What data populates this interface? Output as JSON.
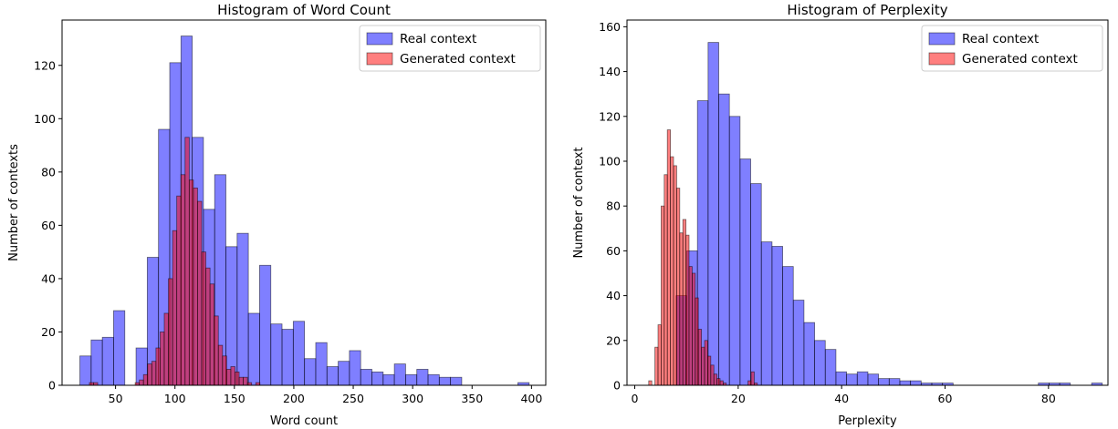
{
  "chart_data": [
    {
      "type": "bar",
      "title": "Histogram of Word Count",
      "xlabel": "Word count",
      "ylabel": "Number of contexts",
      "xlim": [
        5,
        412
      ],
      "ylim": [
        0,
        137
      ],
      "xticks": [
        50,
        100,
        150,
        200,
        250,
        300,
        350,
        400
      ],
      "yticks": [
        0,
        20,
        40,
        60,
        80,
        100,
        120
      ],
      "grid": false,
      "legend_position": "upper right",
      "series": [
        {
          "name": "Real context",
          "color": "#0000ff",
          "bin_start": 20.0,
          "bin_width": 9.45,
          "values": [
            11,
            17,
            18,
            28,
            0,
            14,
            48,
            96,
            121,
            131,
            93,
            66,
            79,
            52,
            57,
            27,
            45,
            23,
            21,
            24,
            10,
            16,
            7,
            9,
            13,
            6,
            5,
            4,
            8,
            4,
            6,
            4,
            3,
            3,
            0,
            0,
            0,
            0,
            0,
            1
          ]
        },
        {
          "name": "Generated context",
          "color": "#ff0000",
          "bin_start": 28.0,
          "bin_width": 3.5,
          "values": [
            1,
            1,
            0,
            0,
            0,
            0,
            0,
            0,
            0,
            0,
            0,
            1,
            2,
            4,
            8,
            9,
            14,
            20,
            27,
            40,
            58,
            71,
            79,
            93,
            77,
            74,
            69,
            50,
            44,
            38,
            26,
            15,
            11,
            6,
            7,
            5,
            3,
            3,
            1,
            0,
            1
          ]
        }
      ]
    },
    {
      "type": "bar",
      "title": "Histogram of Perplexity",
      "xlabel": "Perplexity",
      "ylabel": "Number of context",
      "xlim": [
        -1.5,
        91.5
      ],
      "ylim": [
        0,
        163
      ],
      "xticks": [
        0,
        20,
        40,
        60,
        80
      ],
      "yticks": [
        0,
        20,
        40,
        60,
        80,
        100,
        120,
        140,
        160
      ],
      "grid": false,
      "legend_position": "upper right",
      "series": [
        {
          "name": "Real context",
          "color": "#0000ff",
          "bin_start": 8.0,
          "bin_width": 2.06,
          "values": [
            40,
            60,
            127,
            153,
            130,
            120,
            101,
            90,
            64,
            62,
            53,
            38,
            28,
            20,
            16,
            6,
            5,
            6,
            5,
            3,
            3,
            2,
            2,
            1,
            1,
            1,
            0,
            0,
            0,
            0,
            0,
            0,
            0,
            0,
            1,
            1,
            1,
            0,
            0,
            1
          ]
        },
        {
          "name": "Generated context",
          "color": "#ff0000",
          "bin_start": 2.7,
          "bin_width": 0.6,
          "values": [
            2,
            0,
            17,
            27,
            80,
            94,
            114,
            102,
            98,
            88,
            68,
            74,
            67,
            53,
            50,
            39,
            25,
            17,
            20,
            13,
            9,
            5,
            3,
            2,
            1,
            0,
            0,
            0,
            0,
            0,
            0,
            0,
            2,
            6,
            1
          ]
        }
      ]
    }
  ]
}
